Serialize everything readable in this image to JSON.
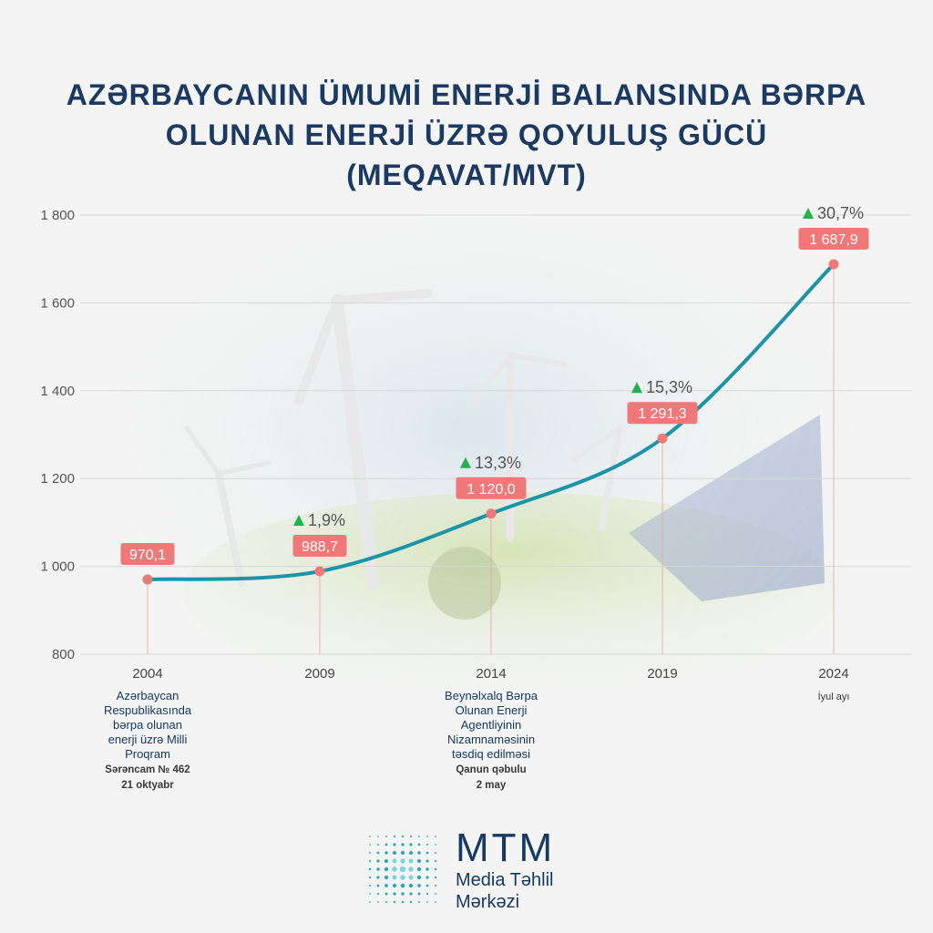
{
  "title": {
    "line1": "AZƏRBAYCANIN ÜMUMİ ENERJİ BALANSINDA BƏRPA",
    "line2": "OLUNAN ENERJİ ÜZRƏ QOYULUŞ GÜCÜ",
    "line3": "(MEQAVAT/MVT)"
  },
  "chart_data": {
    "type": "line",
    "title": "AZƏRBAYCANIN ÜMUMİ ENERJİ BALANSINDA BƏRPA OLUNAN ENERJİ ÜZRƏ QOYULUŞ GÜCÜ (MEQAVAT/MVT)",
    "categories": [
      "2004",
      "2009",
      "2014",
      "2019",
      "2024"
    ],
    "values": [
      970.1,
      988.7,
      1120.0,
      1291.3,
      1687.9
    ],
    "value_labels": [
      "970,1",
      "988,7",
      "1 120,0",
      "1 291,3",
      "1 687,9"
    ],
    "growth_labels": [
      "",
      "1,9%",
      "13,3%",
      "15,3%",
      "30,7%"
    ],
    "yticks": [
      800,
      1000,
      1200,
      1400,
      1600,
      1800
    ],
    "ytick_labels": [
      "800",
      "1 000",
      "1 200",
      "1 400",
      "1 600",
      "1 800"
    ],
    "ylim": [
      800,
      1800
    ],
    "grid": true,
    "colors": {
      "line": "#1a94a6",
      "marker": "#f07878",
      "label_bg": "#f07878",
      "up_arrow": "#22b14c",
      "grid": "#d6d6d6",
      "text": "#555555"
    }
  },
  "annotations": [
    {
      "year": "2004",
      "main": [
        "Azərbaycan",
        "Respublikasında",
        "bərpa olunan",
        "enerji üzrə Milli",
        "Proqram"
      ],
      "sub": [
        "Sərəncam № 462",
        "21 oktyabr"
      ]
    },
    {
      "year": "2014",
      "main": [
        "Beynəlxalq Bərpa",
        "Olunan Enerji",
        "Agentliyinin",
        "Nizamnaməsinin",
        "təsdiq edilməsi"
      ],
      "sub": [
        "Qanun qəbulu",
        "2 may"
      ]
    },
    {
      "year": "2024",
      "main": [],
      "sub": [
        "İyul ayı"
      ]
    }
  ],
  "logo": {
    "brand": "MTM",
    "line1": "Media Təhlil",
    "line2": "Mərkəzi",
    "color": "#163a66"
  }
}
